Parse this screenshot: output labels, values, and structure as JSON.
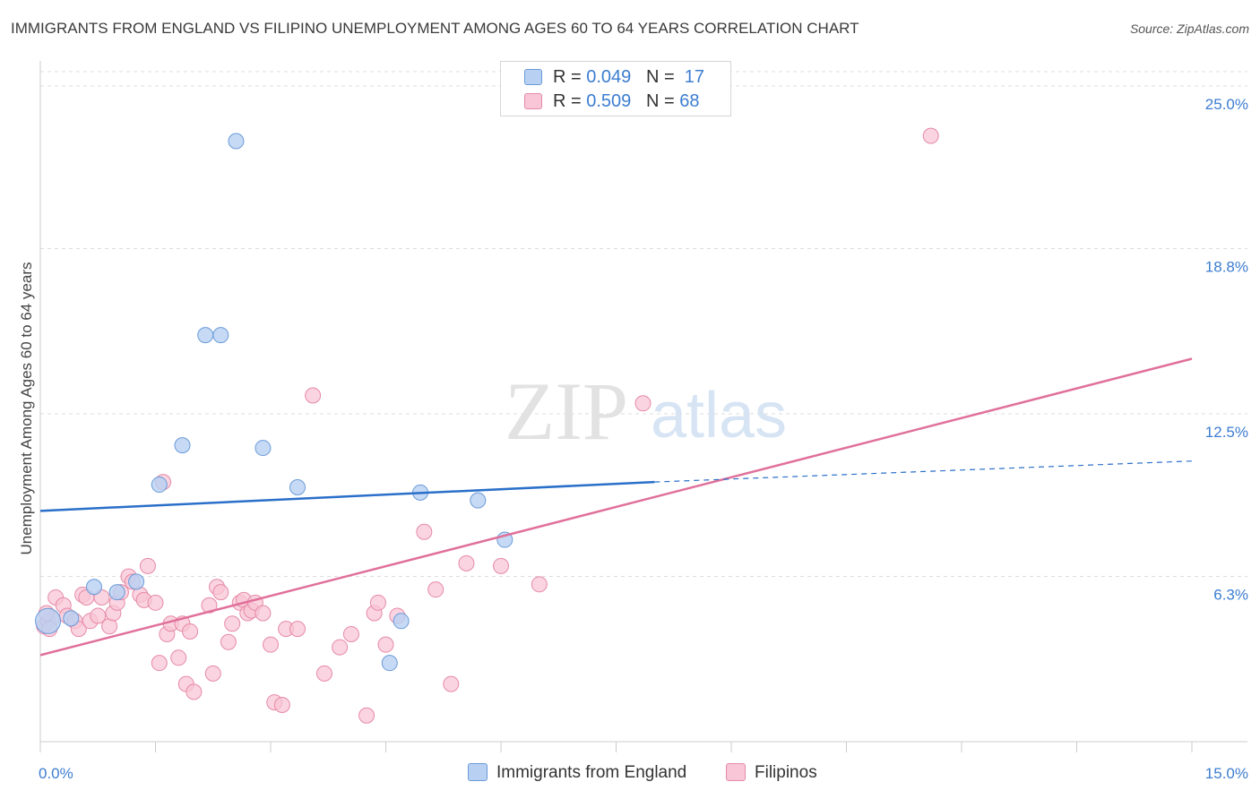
{
  "title": "IMMIGRANTS FROM ENGLAND VS FILIPINO UNEMPLOYMENT AMONG AGES 60 TO 64 YEARS CORRELATION CHART",
  "source": "Source: ZipAtlas.com",
  "watermark": {
    "zip": "ZIP",
    "atlas": "atlas"
  },
  "legend_top": [
    {
      "r_label": "R = ",
      "r_value": "0.049",
      "n_label": "N = ",
      "n_value": "17"
    },
    {
      "r_label": "R = ",
      "r_value": "0.509",
      "n_label": "N = ",
      "n_value": "68"
    }
  ],
  "colors": {
    "england_fill": "#b8d1f3",
    "england_stroke": "#6a9ad8",
    "england_line": "#2a6fc9",
    "filipino_fill": "#f8c6d6",
    "filipino_stroke": "#e68aa7",
    "filipino_line": "#e0709a",
    "axis_label": "#3c7dd0",
    "grid": "#dddddd"
  },
  "chart_data": {
    "type": "scatter",
    "title": "IMMIGRANTS FROM ENGLAND VS FILIPINO UNEMPLOYMENT AMONG AGES 60 TO 64 YEARS CORRELATION CHART",
    "xlabel": "",
    "ylabel": "Unemployment Among Ages 60 to 64 years",
    "xlim": [
      0,
      15
    ],
    "ylim": [
      0,
      25
    ],
    "x_tick_labels": [
      {
        "value": 0,
        "label": "0.0%"
      },
      {
        "value": 15,
        "label": "15.0%"
      }
    ],
    "y_tick_labels": [
      {
        "value": 6.3,
        "label": "6.3%"
      },
      {
        "value": 12.5,
        "label": "12.5%"
      },
      {
        "value": 18.8,
        "label": "18.8%"
      },
      {
        "value": 25.0,
        "label": "25.0%"
      }
    ],
    "grid": true,
    "legend_position": "bottom",
    "series": [
      {
        "name": "Immigrants from England",
        "points": [
          [
            0.1,
            4.6
          ],
          [
            0.4,
            4.7
          ],
          [
            0.7,
            5.9
          ],
          [
            1.0,
            5.7
          ],
          [
            1.25,
            6.1
          ],
          [
            1.55,
            9.8
          ],
          [
            1.85,
            11.3
          ],
          [
            2.15,
            15.5
          ],
          [
            2.35,
            15.5
          ],
          [
            2.55,
            22.9
          ],
          [
            2.9,
            11.2
          ],
          [
            3.35,
            9.7
          ],
          [
            4.55,
            3.0
          ],
          [
            4.7,
            4.6
          ],
          [
            4.95,
            9.5
          ],
          [
            5.7,
            9.2
          ],
          [
            6.05,
            7.7
          ]
        ],
        "trend": {
          "x0": 0,
          "y0": 8.8,
          "x1": 8.0,
          "y1": 9.9,
          "dash_x1": 15,
          "dash_y1": 10.7
        }
      },
      {
        "name": "Filipinos",
        "points": [
          [
            0.05,
            4.4
          ],
          [
            0.1,
            4.6
          ],
          [
            0.15,
            4.7
          ],
          [
            0.2,
            5.5
          ],
          [
            0.3,
            5.2
          ],
          [
            0.35,
            4.8
          ],
          [
            0.45,
            4.6
          ],
          [
            0.5,
            4.3
          ],
          [
            0.55,
            5.6
          ],
          [
            0.6,
            5.5
          ],
          [
            0.65,
            4.6
          ],
          [
            0.75,
            4.8
          ],
          [
            0.8,
            5.5
          ],
          [
            0.9,
            4.4
          ],
          [
            0.95,
            4.9
          ],
          [
            1.0,
            5.3
          ],
          [
            1.05,
            5.7
          ],
          [
            1.15,
            6.3
          ],
          [
            1.2,
            6.1
          ],
          [
            1.3,
            5.6
          ],
          [
            1.35,
            5.4
          ],
          [
            1.4,
            6.7
          ],
          [
            1.5,
            5.3
          ],
          [
            1.55,
            3.0
          ],
          [
            1.6,
            9.9
          ],
          [
            1.65,
            4.1
          ],
          [
            1.7,
            4.5
          ],
          [
            1.8,
            3.2
          ],
          [
            1.85,
            4.5
          ],
          [
            1.9,
            2.2
          ],
          [
            1.95,
            4.2
          ],
          [
            2.0,
            1.9
          ],
          [
            2.2,
            5.2
          ],
          [
            2.25,
            2.6
          ],
          [
            2.3,
            5.9
          ],
          [
            2.35,
            5.7
          ],
          [
            2.45,
            3.8
          ],
          [
            2.5,
            4.5
          ],
          [
            2.6,
            5.3
          ],
          [
            2.65,
            5.4
          ],
          [
            2.7,
            4.9
          ],
          [
            2.75,
            5.0
          ],
          [
            2.8,
            5.3
          ],
          [
            2.9,
            4.9
          ],
          [
            3.0,
            3.7
          ],
          [
            3.05,
            1.5
          ],
          [
            3.15,
            1.4
          ],
          [
            3.2,
            4.3
          ],
          [
            3.35,
            4.3
          ],
          [
            3.55,
            13.2
          ],
          [
            3.7,
            2.6
          ],
          [
            3.9,
            3.6
          ],
          [
            4.05,
            4.1
          ],
          [
            4.25,
            1.0
          ],
          [
            4.35,
            4.9
          ],
          [
            4.4,
            5.3
          ],
          [
            4.5,
            3.7
          ],
          [
            4.65,
            4.8
          ],
          [
            5.0,
            8.0
          ],
          [
            5.15,
            5.8
          ],
          [
            5.35,
            2.2
          ],
          [
            5.55,
            6.8
          ],
          [
            6.0,
            6.7
          ],
          [
            6.5,
            6.0
          ],
          [
            7.85,
            12.9
          ],
          [
            11.6,
            23.1
          ],
          [
            0.12,
            4.3
          ],
          [
            0.08,
            4.9
          ]
        ],
        "trend": {
          "x0": 0,
          "y0": 3.3,
          "x1": 15,
          "y1": 14.6
        }
      }
    ]
  }
}
